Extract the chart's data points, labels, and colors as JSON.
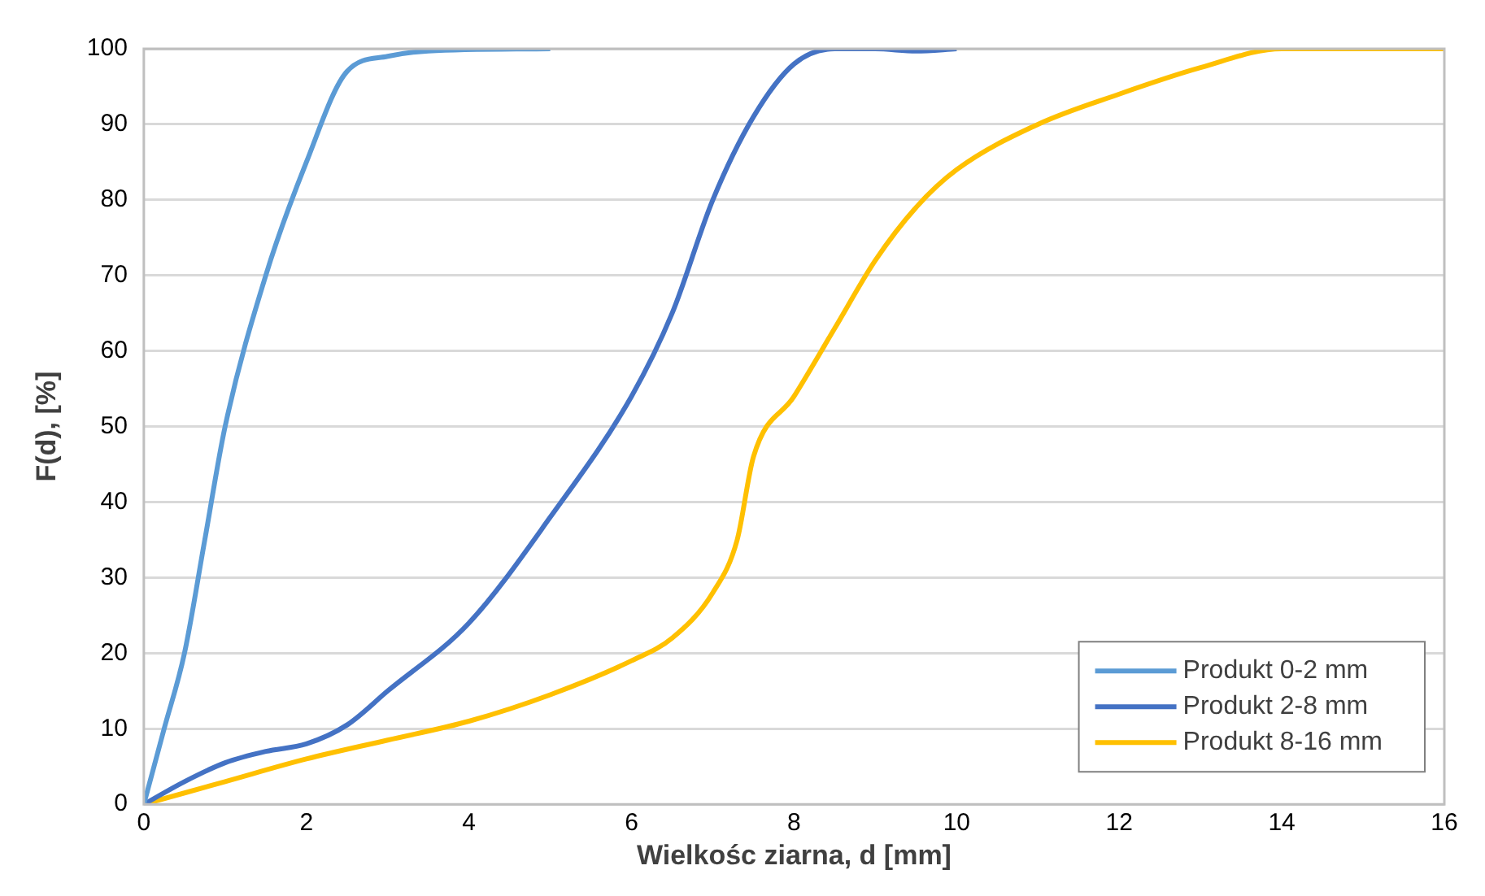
{
  "chart_data": {
    "type": "line",
    "xlabel": "Wielkośc ziarna, d [mm]",
    "ylabel": "F(d), [%]",
    "xlim": [
      0,
      16
    ],
    "xticks": [
      0,
      2,
      4,
      6,
      8,
      10,
      12,
      14,
      16
    ],
    "ylim": [
      0,
      100
    ],
    "yticks": [
      0,
      10,
      20,
      30,
      40,
      50,
      60,
      70,
      80,
      90,
      100
    ],
    "grid": "y",
    "legend": "bottom right",
    "marker": "none",
    "line_style": "solid",
    "series": [
      {
        "name": "Produkt 0-2 mm",
        "color": "#5b9bd5",
        "x": [
          0,
          0.25,
          0.5,
          0.75,
          1,
          1.5,
          2,
          2.5,
          3,
          3.5,
          5
        ],
        "values": [
          0,
          10,
          20,
          35,
          50,
          70,
          85,
          97,
          99,
          99.7,
          100
        ]
      },
      {
        "name": "Produkt 2-8 mm",
        "color": "#4472c4",
        "x": [
          0,
          0.5,
          1,
          1.5,
          2,
          2.5,
          3,
          4,
          5,
          6,
          6.5,
          7,
          7.5,
          8,
          8.5,
          9,
          9.5,
          10
        ],
        "values": [
          0,
          3,
          5.5,
          7,
          8,
          10.5,
          15,
          24,
          38,
          54,
          65,
          80,
          91,
          98,
          100,
          100,
          99.7,
          100
        ]
      },
      {
        "name": "Produkt 8-16 mm",
        "color": "#ffc000",
        "x": [
          0,
          1,
          2,
          3,
          4,
          5,
          6,
          6.5,
          7,
          7.3,
          7.5,
          8,
          8.5,
          9,
          9.5,
          10,
          11,
          12,
          13,
          14,
          16
        ],
        "values": [
          0,
          3,
          6,
          8.5,
          11,
          14.5,
          19,
          22,
          28,
          35,
          46,
          54,
          63,
          72,
          79,
          84,
          90,
          94,
          97.5,
          100,
          100
        ]
      }
    ]
  }
}
